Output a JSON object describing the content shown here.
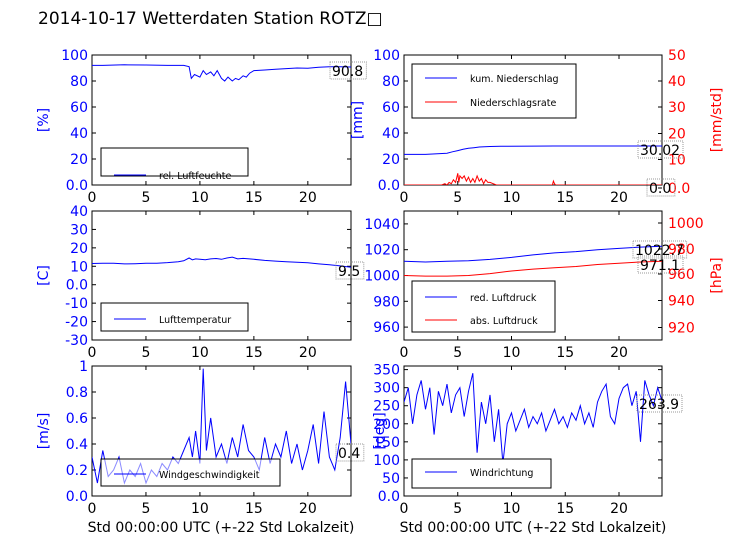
{
  "figure": {
    "title": "2014-10-17 Wetterdaten Station ROTZ□",
    "xlabel": "Std 00:00:00 UTC (+-22 Std Lokalzeit)"
  },
  "colors": {
    "blue": "#0000ff",
    "red": "#ff0000"
  },
  "chart_data": [
    {
      "type": "line",
      "ylabel": "[%]",
      "xlim": [
        0,
        24
      ],
      "ylim": [
        0,
        100
      ],
      "xticks": [
        0,
        5,
        10,
        15,
        20
      ],
      "yticks": [
        0,
        20,
        40,
        60,
        80,
        100
      ],
      "legend_placement": "lower-left",
      "annotation": "90.8",
      "series": [
        {
          "name": "rel. Luftfeuchte",
          "color": "#0000ff",
          "x": [
            0,
            1,
            3,
            5,
            7,
            8.5,
            9,
            9.2,
            9.5,
            10,
            10.3,
            10.6,
            11,
            11.3,
            11.6,
            12,
            12.3,
            12.6,
            13,
            13.3,
            13.6,
            14,
            14.3,
            14.6,
            15,
            16,
            17,
            18,
            19,
            20,
            21,
            22,
            23,
            24
          ],
          "y": [
            92,
            92,
            92.5,
            92.3,
            92,
            92,
            91,
            82,
            85,
            83,
            88,
            85,
            87,
            84,
            88,
            82,
            80,
            83,
            80,
            82,
            81,
            84,
            83,
            86,
            88,
            88.5,
            89,
            89.5,
            90,
            89.8,
            90.5,
            91,
            91,
            90.8
          ]
        }
      ]
    },
    {
      "type": "line",
      "ylabel": "[mm]",
      "ylabel_right": "[mm/std]",
      "xlim": [
        0,
        24
      ],
      "ylim": [
        0,
        100
      ],
      "ylim_right": [
        0,
        50
      ],
      "xticks": [
        0,
        5,
        10,
        15,
        20
      ],
      "yticks": [
        0,
        20,
        40,
        60,
        80,
        100
      ],
      "yticks_right": [
        0,
        10,
        20,
        30,
        40,
        50
      ],
      "legend_placement": "upper-left",
      "annotations": [
        "30.02",
        "0.0"
      ],
      "series": [
        {
          "name": "kum. Niederschlag",
          "color": "#0000ff",
          "axis": "left",
          "x": [
            0,
            2,
            4,
            4.5,
            5,
            5.5,
            6,
            6.5,
            7,
            7.5,
            8,
            9,
            12,
            14,
            15,
            18,
            20,
            24
          ],
          "y": [
            23.5,
            23.5,
            24.5,
            25.5,
            26.5,
            27.5,
            28.2,
            28.7,
            29.2,
            29.4,
            29.6,
            29.8,
            29.9,
            30.0,
            30.0,
            30.02,
            30.02,
            30.02
          ]
        },
        {
          "name": "Niederschlagsrate",
          "color": "#ff0000",
          "axis": "right",
          "x": [
            0,
            3.5,
            3.8,
            4.0,
            4.2,
            4.4,
            4.6,
            4.8,
            5.0,
            5.1,
            5.2,
            5.4,
            5.6,
            5.8,
            6.0,
            6.2,
            6.4,
            6.6,
            6.8,
            7.0,
            7.2,
            7.4,
            7.6,
            7.8,
            8.0,
            8.3,
            8.6,
            10,
            13,
            13.8,
            13.9,
            14.0,
            14.1,
            15,
            24
          ],
          "y": [
            0,
            0,
            0.5,
            0,
            1,
            0.5,
            2,
            1,
            4.5,
            1,
            3.5,
            2.5,
            3.5,
            1.5,
            3,
            1,
            2.5,
            1,
            3.5,
            1.5,
            2.5,
            0.5,
            2,
            1,
            1,
            0.5,
            0,
            0,
            0,
            0,
            1.5,
            0.5,
            0,
            0,
            0
          ]
        }
      ]
    },
    {
      "type": "line",
      "ylabel": "[C]",
      "xlim": [
        0,
        24
      ],
      "ylim": [
        -30,
        40
      ],
      "xticks": [
        0,
        5,
        10,
        15,
        20
      ],
      "yticks": [
        -30,
        -20,
        -10,
        0,
        10,
        20,
        30,
        40
      ],
      "legend_placement": "lower-left",
      "annotation": "9.5",
      "series": [
        {
          "name": "Lufttemperatur",
          "color": "#0000ff",
          "x": [
            0,
            1,
            2,
            3,
            4,
            5,
            6,
            7,
            8,
            8.5,
            9,
            9.3,
            9.6,
            10,
            10.5,
            11,
            11.5,
            12,
            12.5,
            13,
            13.5,
            14,
            15,
            16,
            17,
            18,
            19,
            20,
            21,
            22,
            23,
            24
          ],
          "y": [
            11.5,
            11.6,
            11.6,
            11.3,
            11.4,
            11.6,
            11.7,
            12,
            12.5,
            13,
            14.5,
            13.5,
            14,
            13.8,
            13.6,
            14,
            14.2,
            13.8,
            14.5,
            15,
            14,
            14.3,
            13.8,
            13.2,
            12.8,
            12.5,
            12.2,
            11.9,
            11.3,
            10.8,
            10.2,
            9.5
          ]
        }
      ]
    },
    {
      "type": "line",
      "ylabel_right": "[hPa]",
      "xlim": [
        0,
        24
      ],
      "ylim": [
        950,
        1050
      ],
      "ylim_right": [
        910,
        1010
      ],
      "xticks": [
        0,
        5,
        10,
        15,
        20
      ],
      "yticks": [
        960,
        980,
        1000,
        1020,
        1040
      ],
      "yticks_right": [
        920,
        940,
        960,
        980,
        1000
      ],
      "legend_placement": "lower-left",
      "annotations": [
        "1022.7",
        "971.1"
      ],
      "series": [
        {
          "name": "red. Luftdruck",
          "color": "#0000ff",
          "axis": "left",
          "x": [
            0,
            2,
            4,
            6,
            8,
            10,
            12,
            14,
            16,
            18,
            20,
            22,
            24
          ],
          "y": [
            1011,
            1010.5,
            1011,
            1011.5,
            1012.5,
            1014,
            1016,
            1017.5,
            1018.5,
            1020,
            1021,
            1022,
            1022.7
          ]
        },
        {
          "name": "abs. Luftdruck",
          "color": "#ff0000",
          "axis": "right",
          "x": [
            0,
            2,
            4,
            6,
            8,
            10,
            12,
            14,
            16,
            18,
            20,
            22,
            24
          ],
          "y": [
            960,
            959.5,
            959.5,
            960,
            961.5,
            963.5,
            965,
            966,
            967,
            968.5,
            969.5,
            970.5,
            971.1
          ]
        }
      ]
    },
    {
      "type": "line",
      "ylabel": "[m/s]",
      "xlim": [
        0,
        24
      ],
      "ylim": [
        0,
        1
      ],
      "xticks": [
        0,
        5,
        10,
        15,
        20
      ],
      "yticks": [
        0,
        0.2,
        0.4,
        0.6,
        0.8,
        1.0
      ],
      "legend_placement": "lower-left",
      "annotation": "0.4",
      "series": [
        {
          "name": "Windgeschwindigkeit",
          "color": "#0000ff",
          "x": [
            0,
            0.5,
            1,
            1.5,
            2,
            2.5,
            3,
            3.5,
            4,
            4.5,
            5,
            5.5,
            6,
            6.5,
            7,
            7.5,
            8,
            8.5,
            9,
            9.3,
            9.6,
            10,
            10.3,
            10.6,
            11,
            11.5,
            12,
            12.5,
            13,
            13.5,
            14,
            14.5,
            15,
            15.5,
            16,
            16.5,
            17,
            17.5,
            18,
            18.5,
            19,
            19.5,
            20,
            20.5,
            21,
            21.5,
            22,
            22.5,
            23,
            23.5,
            24
          ],
          "y": [
            0.3,
            0.1,
            0.35,
            0.15,
            0.2,
            0.3,
            0.1,
            0.2,
            0.15,
            0.25,
            0.1,
            0.2,
            0.15,
            0.25,
            0.2,
            0.3,
            0.25,
            0.35,
            0.45,
            0.3,
            0.5,
            0.25,
            0.98,
            0.35,
            0.6,
            0.3,
            0.4,
            0.25,
            0.45,
            0.3,
            0.55,
            0.35,
            0.3,
            0.2,
            0.45,
            0.25,
            0.4,
            0.3,
            0.5,
            0.25,
            0.4,
            0.2,
            0.35,
            0.55,
            0.25,
            0.65,
            0.3,
            0.2,
            0.45,
            0.88,
            0.4
          ]
        }
      ]
    },
    {
      "type": "line",
      "ylabel": "[deg]",
      "xlim": [
        0,
        24
      ],
      "ylim": [
        0,
        360
      ],
      "xticks": [
        0,
        5,
        10,
        15,
        20
      ],
      "yticks": [
        0,
        50,
        100,
        150,
        200,
        250,
        300,
        350
      ],
      "legend_placement": "lower-left",
      "annotation": "263.9",
      "series": [
        {
          "name": "Windrichtung",
          "color": "#0000ff",
          "x": [
            0,
            0.4,
            0.8,
            1.2,
            1.6,
            2,
            2.4,
            2.8,
            3.2,
            3.6,
            4,
            4.4,
            4.8,
            5.2,
            5.6,
            6,
            6.4,
            6.8,
            7.2,
            7.6,
            8,
            8.4,
            8.8,
            9.2,
            9.6,
            10,
            10.4,
            10.8,
            11.2,
            11.6,
            12,
            12.4,
            12.8,
            13.2,
            13.6,
            14,
            14.4,
            14.8,
            15.2,
            15.6,
            16,
            16.4,
            16.8,
            17.2,
            17.6,
            18,
            18.4,
            18.8,
            19.2,
            19.6,
            20,
            20.4,
            20.8,
            21.2,
            21.6,
            22,
            22.4,
            22.8,
            23.2,
            23.6,
            24
          ],
          "y": [
            260,
            300,
            200,
            280,
            320,
            240,
            300,
            170,
            290,
            250,
            310,
            230,
            280,
            300,
            220,
            290,
            340,
            120,
            260,
            200,
            280,
            150,
            240,
            90,
            200,
            230,
            180,
            210,
            240,
            190,
            220,
            200,
            230,
            180,
            210,
            240,
            200,
            220,
            190,
            230,
            210,
            250,
            200,
            230,
            190,
            260,
            290,
            310,
            220,
            200,
            270,
            300,
            310,
            250,
            290,
            150,
            320,
            280,
            250,
            300,
            264
          ]
        }
      ]
    }
  ]
}
